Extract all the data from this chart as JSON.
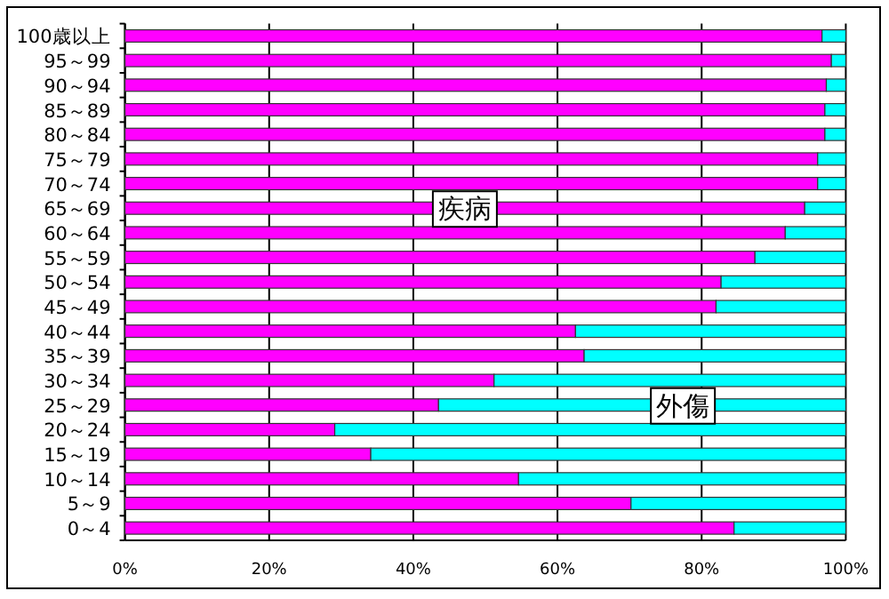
{
  "chart_data": {
    "type": "bar",
    "orientation": "horizontal",
    "stacked": true,
    "categories": [
      "100歳以上",
      "95～99",
      "90～94",
      "85～89",
      "80～84",
      "75～79",
      "70～74",
      "65～69",
      "60～64",
      "55～59",
      "50～54",
      "45～49",
      "40～44",
      "35～39",
      "30～34",
      "25～29",
      "20～24",
      "15～19",
      "10～14",
      "5～9",
      "0～4"
    ],
    "series": [
      {
        "name": "疾病",
        "color": "#ff00ff",
        "values": [
          96.7,
          98.0,
          97.3,
          97.1,
          97.1,
          96.1,
          96.1,
          94.3,
          91.6,
          87.4,
          82.7,
          82.0,
          62.5,
          63.7,
          51.2,
          43.5,
          29.1,
          34.1,
          54.6,
          70.2,
          84.5
        ]
      },
      {
        "name": "外傷",
        "color": "#00ffff",
        "values": [
          3.3,
          2.0,
          2.7,
          2.9,
          2.9,
          3.9,
          3.9,
          5.7,
          8.4,
          12.6,
          17.3,
          18.0,
          37.5,
          36.3,
          48.8,
          56.5,
          70.9,
          65.9,
          45.4,
          29.8,
          15.5
        ]
      }
    ],
    "xlim": [
      0,
      100
    ],
    "xticks": [
      {
        "value": 0,
        "label": "0%"
      },
      {
        "value": 20,
        "label": "20%"
      },
      {
        "value": 40,
        "label": "40%"
      },
      {
        "value": 60,
        "label": "60%"
      },
      {
        "value": 80,
        "label": "80%"
      },
      {
        "value": 100,
        "label": "100%"
      }
    ],
    "grid": "x"
  }
}
